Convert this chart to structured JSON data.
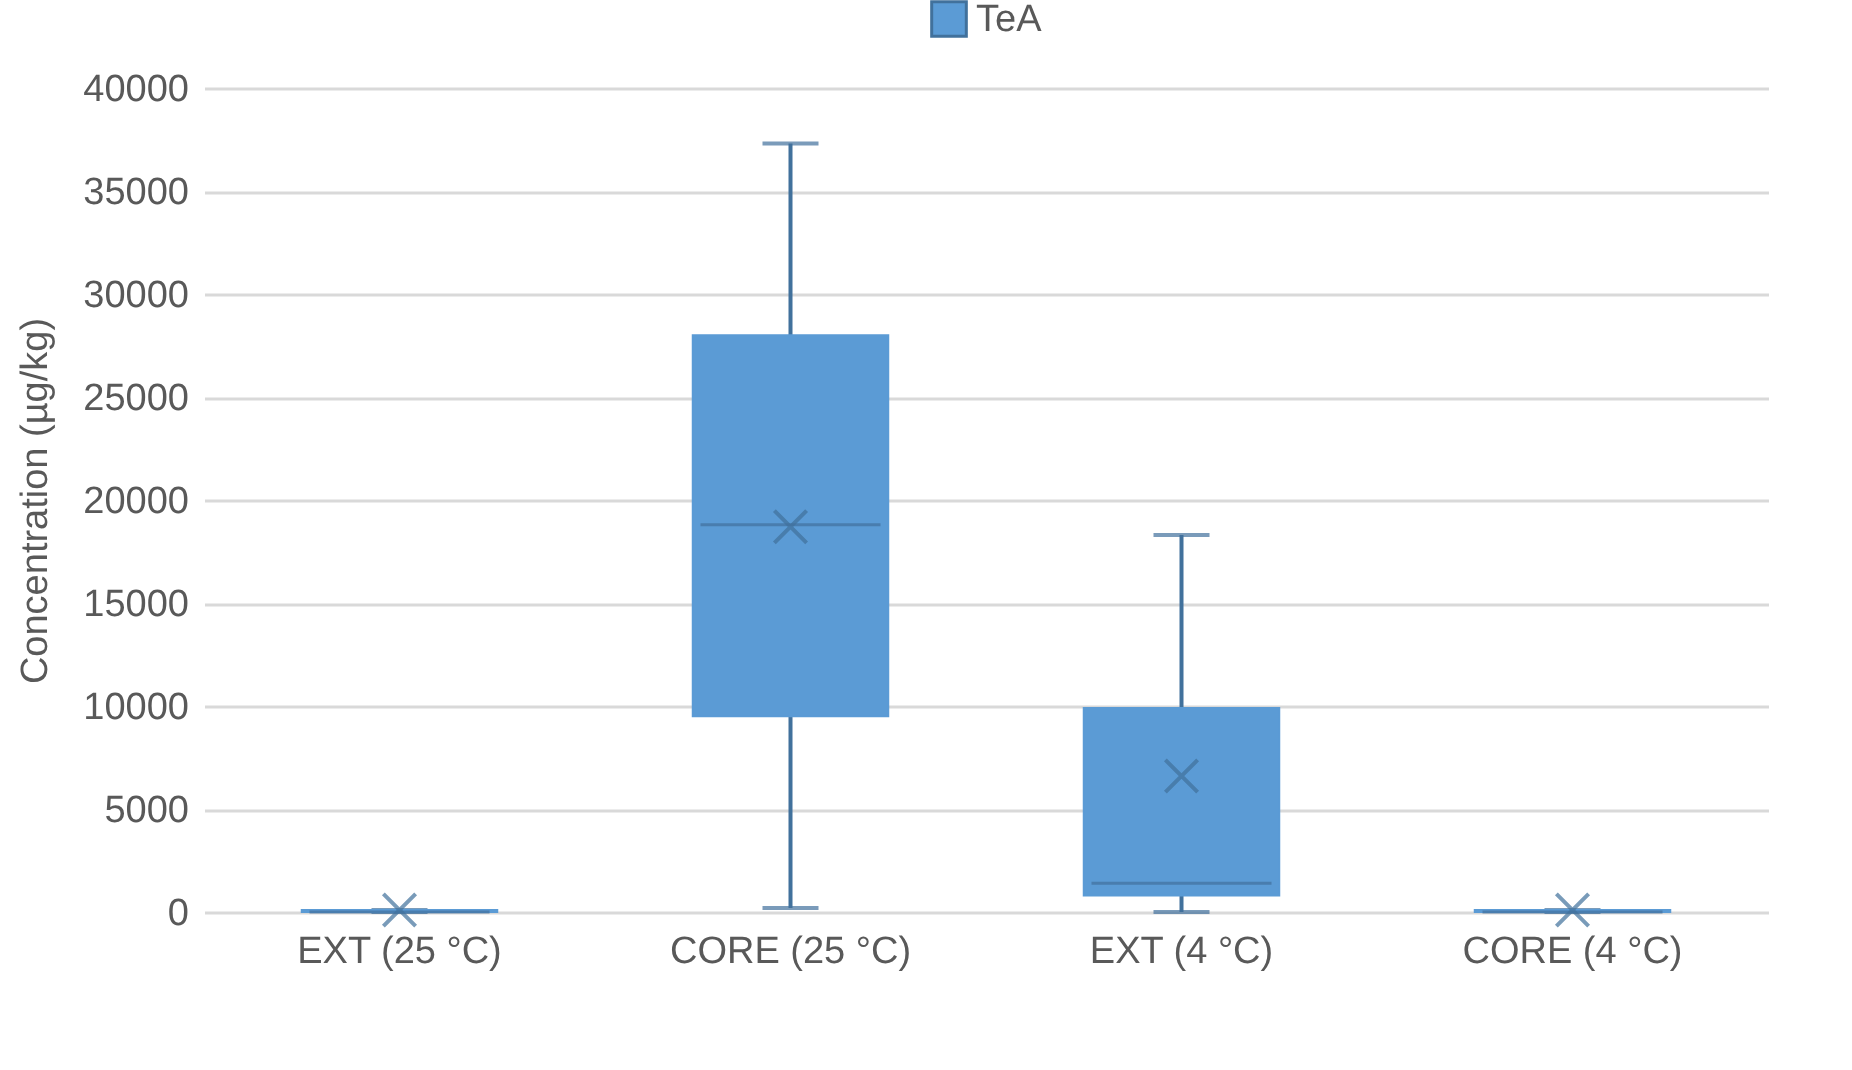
{
  "chart_data": {
    "type": "box",
    "ylabel": "Concentration (µg/kg)",
    "categories": [
      "EXT (25 °C)",
      "CORE (25 °C)",
      "EXT (4 °C)",
      "CORE (4 °C)"
    ],
    "series": [
      {
        "name": "TeA",
        "color": "#5b9bd5",
        "boxes": [
          {
            "low": 0,
            "q1": 0,
            "median": 0,
            "q3": 100,
            "high": 100,
            "mean": 100
          },
          {
            "low": 200,
            "q1": 9500,
            "median": 18800,
            "q3": 28000,
            "high": 37300,
            "mean": 18700
          },
          {
            "low": 0,
            "q1": 800,
            "median": 1400,
            "q3": 9900,
            "high": 18300,
            "mean": 6600
          },
          {
            "low": 0,
            "q1": 0,
            "median": 0,
            "q3": 100,
            "high": 100,
            "mean": 100
          }
        ]
      }
    ],
    "ylim": [
      0,
      40000
    ],
    "yticks": [
      0,
      5000,
      10000,
      15000,
      20000,
      25000,
      30000,
      35000,
      40000
    ],
    "grid": "y",
    "legend": "top",
    "marker": "cross"
  }
}
